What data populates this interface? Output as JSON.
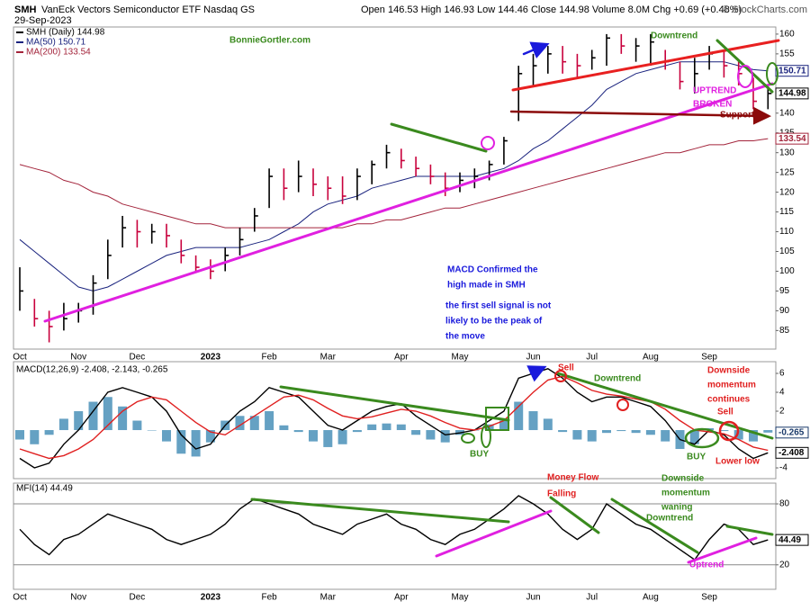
{
  "chart_data": [
    {
      "type": "ohlc",
      "ticker": "SMH",
      "name": "VanEck Vectors Semiconductor ETF Nasdaq GS",
      "date": "29-Sep-2023",
      "quote": "Open 146.53 High 146.93 Low 144.46 Close 144.98 Volume 8.0M Chg +0.69 (+0.48%)",
      "source": "© StockCharts.com",
      "legend": "SMH (Daily) 144.98",
      "badge": 144.98,
      "up_color": "#000000",
      "down_color": "#c8003c",
      "categories": [
        "Oct",
        null,
        null,
        null,
        "Nov",
        null,
        null,
        null,
        "Dec",
        null,
        null,
        null,
        null,
        "2023",
        null,
        null,
        null,
        "Feb",
        null,
        null,
        null,
        "Mar",
        null,
        null,
        null,
        null,
        "Apr",
        null,
        null,
        null,
        "May",
        null,
        null,
        null,
        null,
        "Jun",
        null,
        null,
        null,
        "Jul",
        null,
        null,
        null,
        "Aug",
        null,
        null,
        null,
        "Sep",
        null,
        null,
        null,
        null
      ],
      "close": [
        95,
        88,
        86,
        88,
        90,
        97,
        104,
        111,
        110,
        110,
        109,
        104,
        101,
        100,
        104,
        108,
        114,
        124,
        121,
        124,
        122,
        121,
        119,
        124,
        127,
        130,
        128,
        126,
        124,
        121,
        123,
        124,
        127,
        133,
        150,
        152,
        155,
        153,
        152,
        154,
        159,
        157,
        157,
        158,
        153,
        148,
        150,
        155,
        152,
        150,
        143,
        144.98
      ],
      "high": [
        101,
        93,
        90,
        92,
        92,
        99,
        108,
        114,
        113,
        112,
        112,
        108,
        104,
        103,
        106,
        111,
        116,
        126,
        126,
        128,
        126,
        124,
        124,
        126,
        128,
        132,
        131,
        129,
        127,
        125,
        125,
        126,
        128,
        134,
        152,
        155,
        157,
        157,
        155,
        156,
        160,
        160,
        159,
        160,
        156,
        153,
        154,
        157,
        156,
        153,
        149,
        146.93
      ],
      "low": [
        90,
        86,
        82,
        85,
        87,
        89,
        98,
        106,
        106,
        107,
        106,
        102,
        100,
        98,
        100,
        104,
        110,
        116,
        118,
        120,
        119,
        118,
        117,
        118,
        122,
        126,
        126,
        124,
        122,
        119,
        120,
        121,
        123,
        127,
        138,
        147,
        150,
        150,
        149,
        151,
        152,
        155,
        153,
        152,
        151,
        146,
        145,
        151,
        149,
        147,
        141,
        141
      ],
      "series": [
        {
          "name": "MA(50) 150.71",
          "color": "#1a237e",
          "badge": 150.71,
          "values": [
            108,
            105,
            102,
            99,
            96,
            95,
            96,
            98,
            100,
            102,
            104,
            105,
            106,
            106,
            106,
            106,
            107,
            108,
            110,
            112,
            115,
            117,
            118,
            119,
            121,
            122,
            123,
            124,
            124,
            124,
            124,
            124,
            125,
            126,
            128,
            131,
            133,
            136,
            139,
            142,
            146,
            148,
            150,
            151,
            152,
            153,
            153,
            153,
            153,
            152,
            151,
            150.71
          ]
        },
        {
          "name": "MA(200) 133.54",
          "color": "#a3243b",
          "badge": 133.54,
          "values": [
            127,
            126,
            125,
            123,
            122,
            120,
            119,
            117,
            116,
            115,
            114,
            113,
            112,
            112,
            111,
            111,
            111,
            111,
            111,
            111,
            111,
            111,
            111,
            112,
            112,
            113,
            113,
            114,
            115,
            116,
            116,
            117,
            118,
            119,
            120,
            121,
            122,
            123,
            124,
            125,
            126,
            127,
            128,
            129,
            130,
            130,
            131,
            132,
            132,
            133,
            133,
            133.54
          ]
        }
      ],
      "ylim": [
        80.3,
        161.8
      ],
      "yticks": [
        85,
        90,
        95,
        100,
        105,
        110,
        115,
        120,
        125,
        130,
        135,
        140,
        155,
        160
      ],
      "annotations": [
        {
          "lines": [
            "BonnieGortler.com"
          ],
          "color": "#3a8a1e"
        },
        {
          "lines": [
            "Downtrend"
          ],
          "color": "#3a8a1e"
        },
        {
          "lines": [
            "UPTREND",
            "BROKEN"
          ],
          "color": "#e020e0"
        },
        {
          "lines": [
            "Support"
          ],
          "color": "#8b0a0a"
        },
        {
          "lines": [
            "MACD Confirmed the",
            "high made in SMH"
          ],
          "color": "#1a1adc"
        },
        {
          "lines": [
            "the first sell signal is not",
            "likely to be the peak of",
            "the move"
          ],
          "color": "#1a1adc"
        }
      ]
    },
    {
      "type": "line",
      "legend": "MACD(12,26,9) -2.408, -2.143, -0.265",
      "series": [
        {
          "style": "histogram",
          "color": "#4a90b8",
          "badge": -0.265,
          "values": [
            -1,
            -1.5,
            -0.5,
            1.2,
            2,
            3,
            3.5,
            2.5,
            1,
            0,
            -1.2,
            -2.5,
            -2.8,
            -1.3,
            1,
            1.5,
            1.5,
            2,
            0.5,
            -0.2,
            -1.2,
            -1.8,
            -1.5,
            -0.2,
            0.6,
            0.7,
            0.6,
            -0.5,
            -1,
            -1.3,
            -0.5,
            0,
            0.6,
            1,
            3,
            2,
            1.2,
            -0.2,
            -1,
            -1.2,
            -0.3,
            -0.1,
            -0.3,
            -0.5,
            -1.2,
            -2,
            -1.5,
            0.2,
            -0.1,
            -1,
            -1.2,
            -0.265
          ]
        },
        {
          "style": "line",
          "color": "#000000",
          "badge": -2.408,
          "values": [
            -3,
            -4,
            -3.5,
            -1.5,
            0,
            2,
            4,
            4.5,
            4,
            3.5,
            2,
            -0.5,
            -2,
            -1.5,
            0.5,
            2,
            3,
            4.5,
            4,
            3.5,
            2,
            0.5,
            0,
            1,
            2,
            2.5,
            2.8,
            1.5,
            0.5,
            -0.5,
            -0.3,
            0,
            1,
            2,
            5.5,
            6,
            6.5,
            5.5,
            4,
            3,
            3.5,
            3.5,
            3,
            2.5,
            1,
            -1,
            -1.5,
            0,
            -0.5,
            -2,
            -3,
            -2.408
          ]
        },
        {
          "style": "line",
          "color": "#e02020",
          "values": [
            -2,
            -2.5,
            -3,
            -2.7,
            -2,
            -1,
            0.5,
            2,
            3,
            3.5,
            3.2,
            2,
            0.8,
            -0.2,
            -0.5,
            0.5,
            1.5,
            2.5,
            3.5,
            3.7,
            3.2,
            2.3,
            1.5,
            1.2,
            1.4,
            1.8,
            2.2,
            2,
            1.5,
            0.8,
            0.2,
            0,
            0.4,
            1,
            2.5,
            4,
            5.3,
            5.7,
            5,
            4.2,
            3.8,
            3.6,
            3.3,
            3,
            2.2,
            1,
            0,
            -0.2,
            -0.4,
            -1,
            -1.8,
            -2.143
          ]
        }
      ],
      "ylim": [
        -5.14,
        7.24
      ],
      "yticks": [
        -4,
        2,
        4,
        6
      ],
      "annotations": [
        {
          "lines": [
            "BUY"
          ],
          "color": "#3a8a1e"
        },
        {
          "lines": [
            "Sell"
          ],
          "color": "#e02020"
        },
        {
          "lines": [
            "Downtrend"
          ],
          "color": "#3a8a1e"
        },
        {
          "lines": [
            "Downside",
            "momentum",
            "continues"
          ],
          "color": "#e02020"
        },
        {
          "lines": [
            "Sell"
          ],
          "color": "#e02020"
        },
        {
          "lines": [
            "BUY"
          ],
          "color": "#3a8a1e"
        },
        {
          "lines": [
            "Lower low"
          ],
          "color": "#e02020"
        }
      ]
    },
    {
      "type": "line",
      "legend": "MFI(14) 44.49",
      "categories": [
        "Oct",
        null,
        null,
        null,
        "Nov",
        null,
        null,
        null,
        "Dec",
        null,
        null,
        null,
        null,
        "2023",
        null,
        null,
        null,
        "Feb",
        null,
        null,
        null,
        "Mar",
        null,
        null,
        null,
        null,
        "Apr",
        null,
        null,
        null,
        "May",
        null,
        null,
        null,
        null,
        "Jun",
        null,
        null,
        null,
        "Jul",
        null,
        null,
        null,
        "Aug",
        null,
        null,
        null,
        "Sep",
        null,
        null,
        null,
        null
      ],
      "series": [
        {
          "style": "line",
          "color": "#000000",
          "badge": 44.49,
          "values": [
            55,
            40,
            30,
            45,
            50,
            60,
            70,
            65,
            60,
            55,
            45,
            40,
            45,
            50,
            60,
            75,
            85,
            80,
            75,
            70,
            60,
            55,
            50,
            60,
            65,
            70,
            60,
            55,
            45,
            40,
            50,
            55,
            65,
            75,
            88,
            80,
            70,
            55,
            45,
            55,
            80,
            70,
            60,
            55,
            45,
            35,
            25,
            45,
            60,
            55,
            40,
            44.49
          ]
        }
      ],
      "ylim": [
        -4.1,
        100.4
      ],
      "yticks": [
        20,
        80
      ],
      "grid": true,
      "annotations": [
        {
          "lines": [
            "Money Flow",
            "Falling"
          ],
          "color": "#e02020"
        },
        {
          "lines": [
            "Downside",
            "momentum",
            "waning"
          ],
          "color": "#3a8a1e"
        },
        {
          "lines": [
            "Downtrend"
          ],
          "color": "#3a8a1e"
        },
        {
          "lines": [
            "Uptrend"
          ],
          "color": "#e020e0"
        }
      ]
    }
  ]
}
